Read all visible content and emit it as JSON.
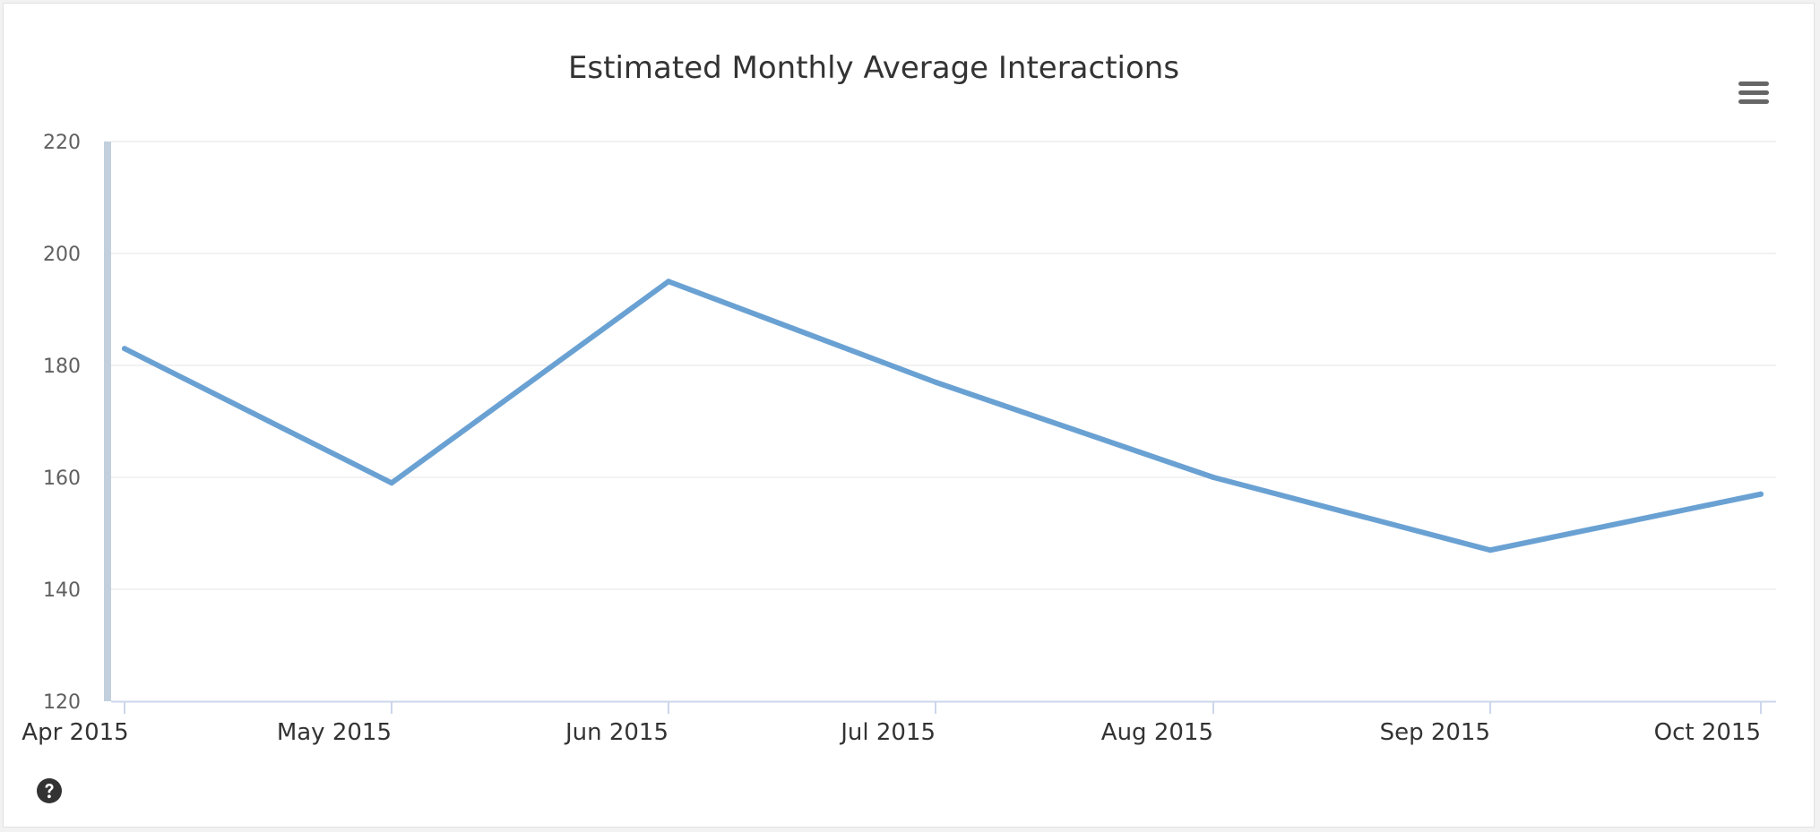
{
  "chart_data": {
    "type": "line",
    "title": "Estimated Monthly Average Interactions",
    "xlabel": "",
    "ylabel": "",
    "categories": [
      "Apr 2015",
      "May 2015",
      "Jun 2015",
      "Jul 2015",
      "Aug 2015",
      "Sep 2015",
      "Oct 2015"
    ],
    "series": [
      {
        "values": [
          183,
          159,
          195,
          177,
          160,
          147,
          157
        ],
        "color": "#6aa1d3"
      }
    ],
    "ylim": [
      120,
      220
    ],
    "yticks": [
      "120",
      "140",
      "160",
      "180",
      "200",
      "220"
    ],
    "grid": true,
    "legend": "none"
  },
  "icons": {
    "menu": "hamburger-menu-icon",
    "help": "question-circle-icon"
  },
  "colors": {
    "line": "#6aa1d3",
    "gridline": "#e6e6e6",
    "axis": "#ccd6eb",
    "navigator_bar": "#c2cfdd"
  }
}
